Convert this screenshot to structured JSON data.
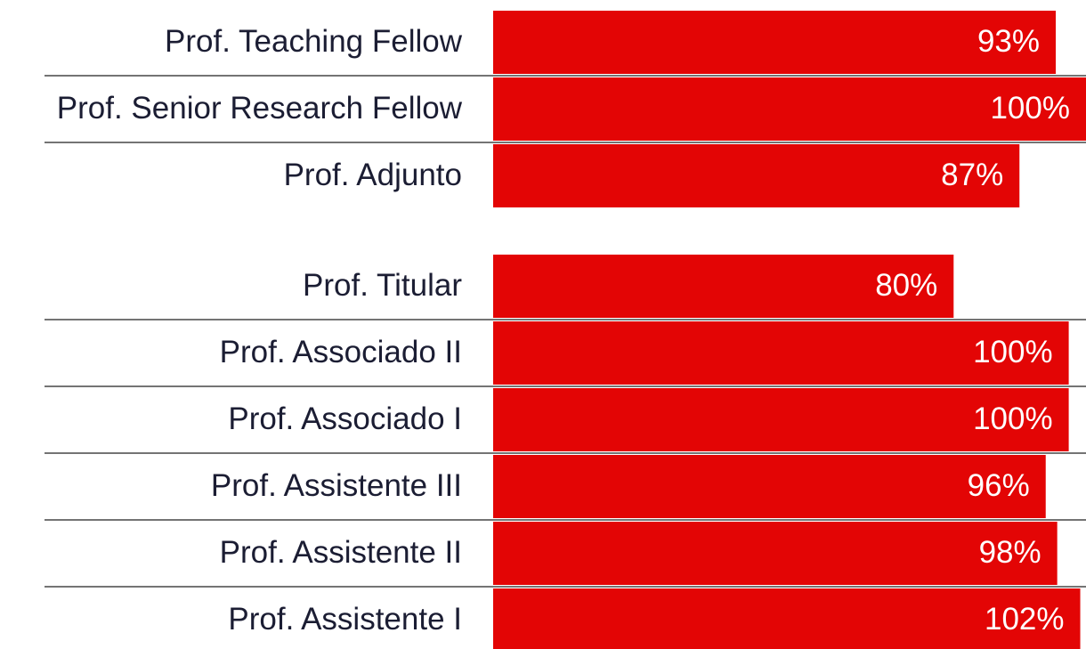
{
  "chart_data": [
    {
      "type": "bar",
      "orientation": "horizontal",
      "color": "#e30505",
      "categories": [
        "Prof. Teaching Fellow",
        "Prof. Senior Research Fellow",
        "Prof. Adjunto"
      ],
      "values": [
        93,
        100,
        87
      ],
      "value_labels": [
        "93%",
        "100%",
        "87%"
      ],
      "xlim": [
        0,
        98
      ]
    },
    {
      "type": "bar",
      "orientation": "horizontal",
      "color": "#e30505",
      "categories": [
        "Prof. Titular",
        "Prof. Associado II",
        "Prof. Associado I",
        "Prof. Assistente III",
        "Prof. Assistente II",
        "Prof. Assistente I"
      ],
      "values": [
        80,
        100,
        100,
        96,
        98,
        102
      ],
      "value_labels": [
        "80%",
        "100%",
        "100%",
        "96%",
        "98%",
        "102%"
      ],
      "xlim": [
        0,
        103
      ]
    }
  ]
}
